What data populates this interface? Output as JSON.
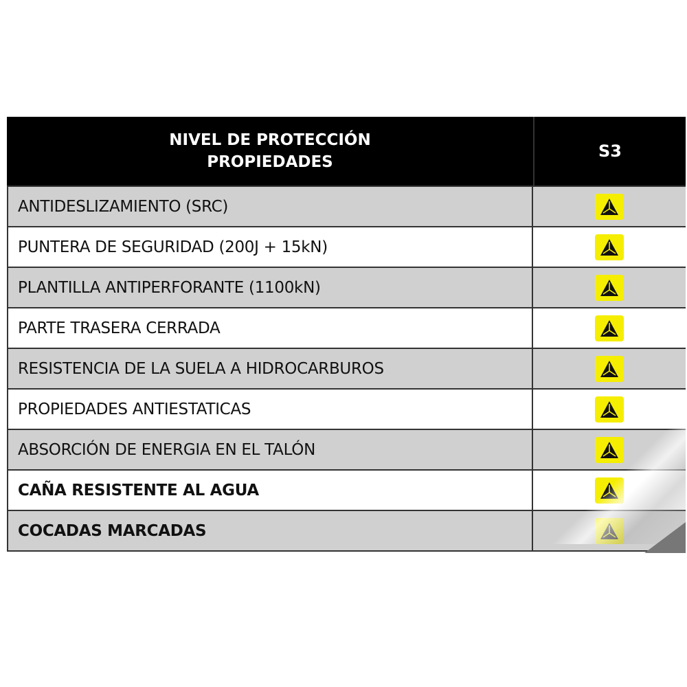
{
  "header": {
    "title_line1": "NIVEL DE PROTECCIÓN",
    "title_line2": "PROPIEDADES",
    "level": "S3"
  },
  "rows": [
    {
      "label": "ANTIDESLIZAMIENTO (SRC)",
      "bold": false,
      "icon": "safety-triangle-icon"
    },
    {
      "label": "PUNTERA DE SEGURIDAD (200J + 15kN)",
      "bold": false,
      "icon": "safety-triangle-icon"
    },
    {
      "label": "PLANTILLA ANTIPERFORANTE (1100kN)",
      "bold": false,
      "icon": "safety-triangle-icon"
    },
    {
      "label": "PARTE TRASERA CERRADA",
      "bold": false,
      "icon": "safety-triangle-icon"
    },
    {
      "label": "RESISTENCIA DE LA SUELA A HIDROCARBUROS",
      "bold": false,
      "icon": "safety-triangle-icon"
    },
    {
      "label": "PROPIEDADES ANTIESTATICAS",
      "bold": false,
      "icon": "safety-triangle-icon"
    },
    {
      "label": "ABSORCIÓN DE ENERGIA EN EL TALÓN",
      "bold": false,
      "icon": "safety-triangle-icon"
    },
    {
      "label": "CAÑA RESISTENTE AL AGUA",
      "bold": true,
      "icon": "safety-triangle-icon"
    },
    {
      "label": "COCADAS MARCADAS",
      "bold": true,
      "icon": "safety-triangle-icon"
    }
  ],
  "colors": {
    "header_bg": "#000000",
    "row_gray": "#d0d0d0",
    "icon_bg": "#f5ee00"
  }
}
